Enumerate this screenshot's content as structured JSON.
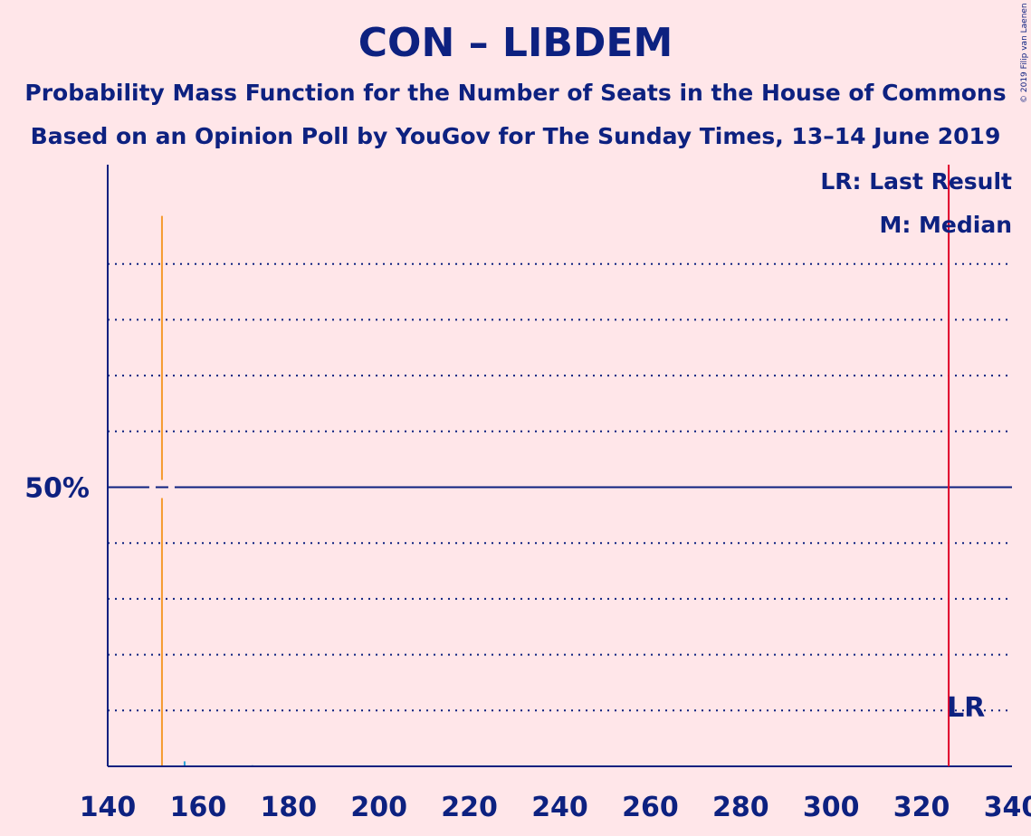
{
  "header": {
    "title": "CON – LIBDEM",
    "subtitle1": "Probability Mass Function for the Number of Seats in the House of Commons",
    "subtitle2": "Based on an Opinion Poll by YouGov for The Sunday Times, 13–14 June 2019",
    "copyright": "© 2019 Filip van Laenen"
  },
  "chart_data": {
    "type": "bar",
    "xlim": [
      140,
      340
    ],
    "ylim": [
      0,
      100
    ],
    "x_ticks": [
      140,
      160,
      180,
      200,
      220,
      240,
      260,
      280,
      300,
      320,
      340
    ],
    "y_tick_label": "50%",
    "y_major": 50,
    "y_gridlines": [
      10,
      20,
      30,
      40,
      60,
      70,
      80,
      90
    ],
    "grid": true,
    "bars": [
      {
        "x": 152,
        "y": 98.6,
        "color": "#f59a2e"
      },
      {
        "x": 157,
        "y": 0.9,
        "color": "#29a3d9"
      },
      {
        "x": 172,
        "y": 0.2,
        "color": "#29a3d9"
      }
    ],
    "median": 152,
    "last_result": 326,
    "legend": {
      "last_result": "LR: Last Result",
      "median": "M: Median",
      "position": "top-right"
    },
    "lr_label": "LR",
    "colors": {
      "axis": "#0d2180",
      "last_result_line": "#e0002b",
      "median_bar": "#f59a2e",
      "bar": "#29a3d9",
      "background": "#ffe6e9"
    }
  }
}
